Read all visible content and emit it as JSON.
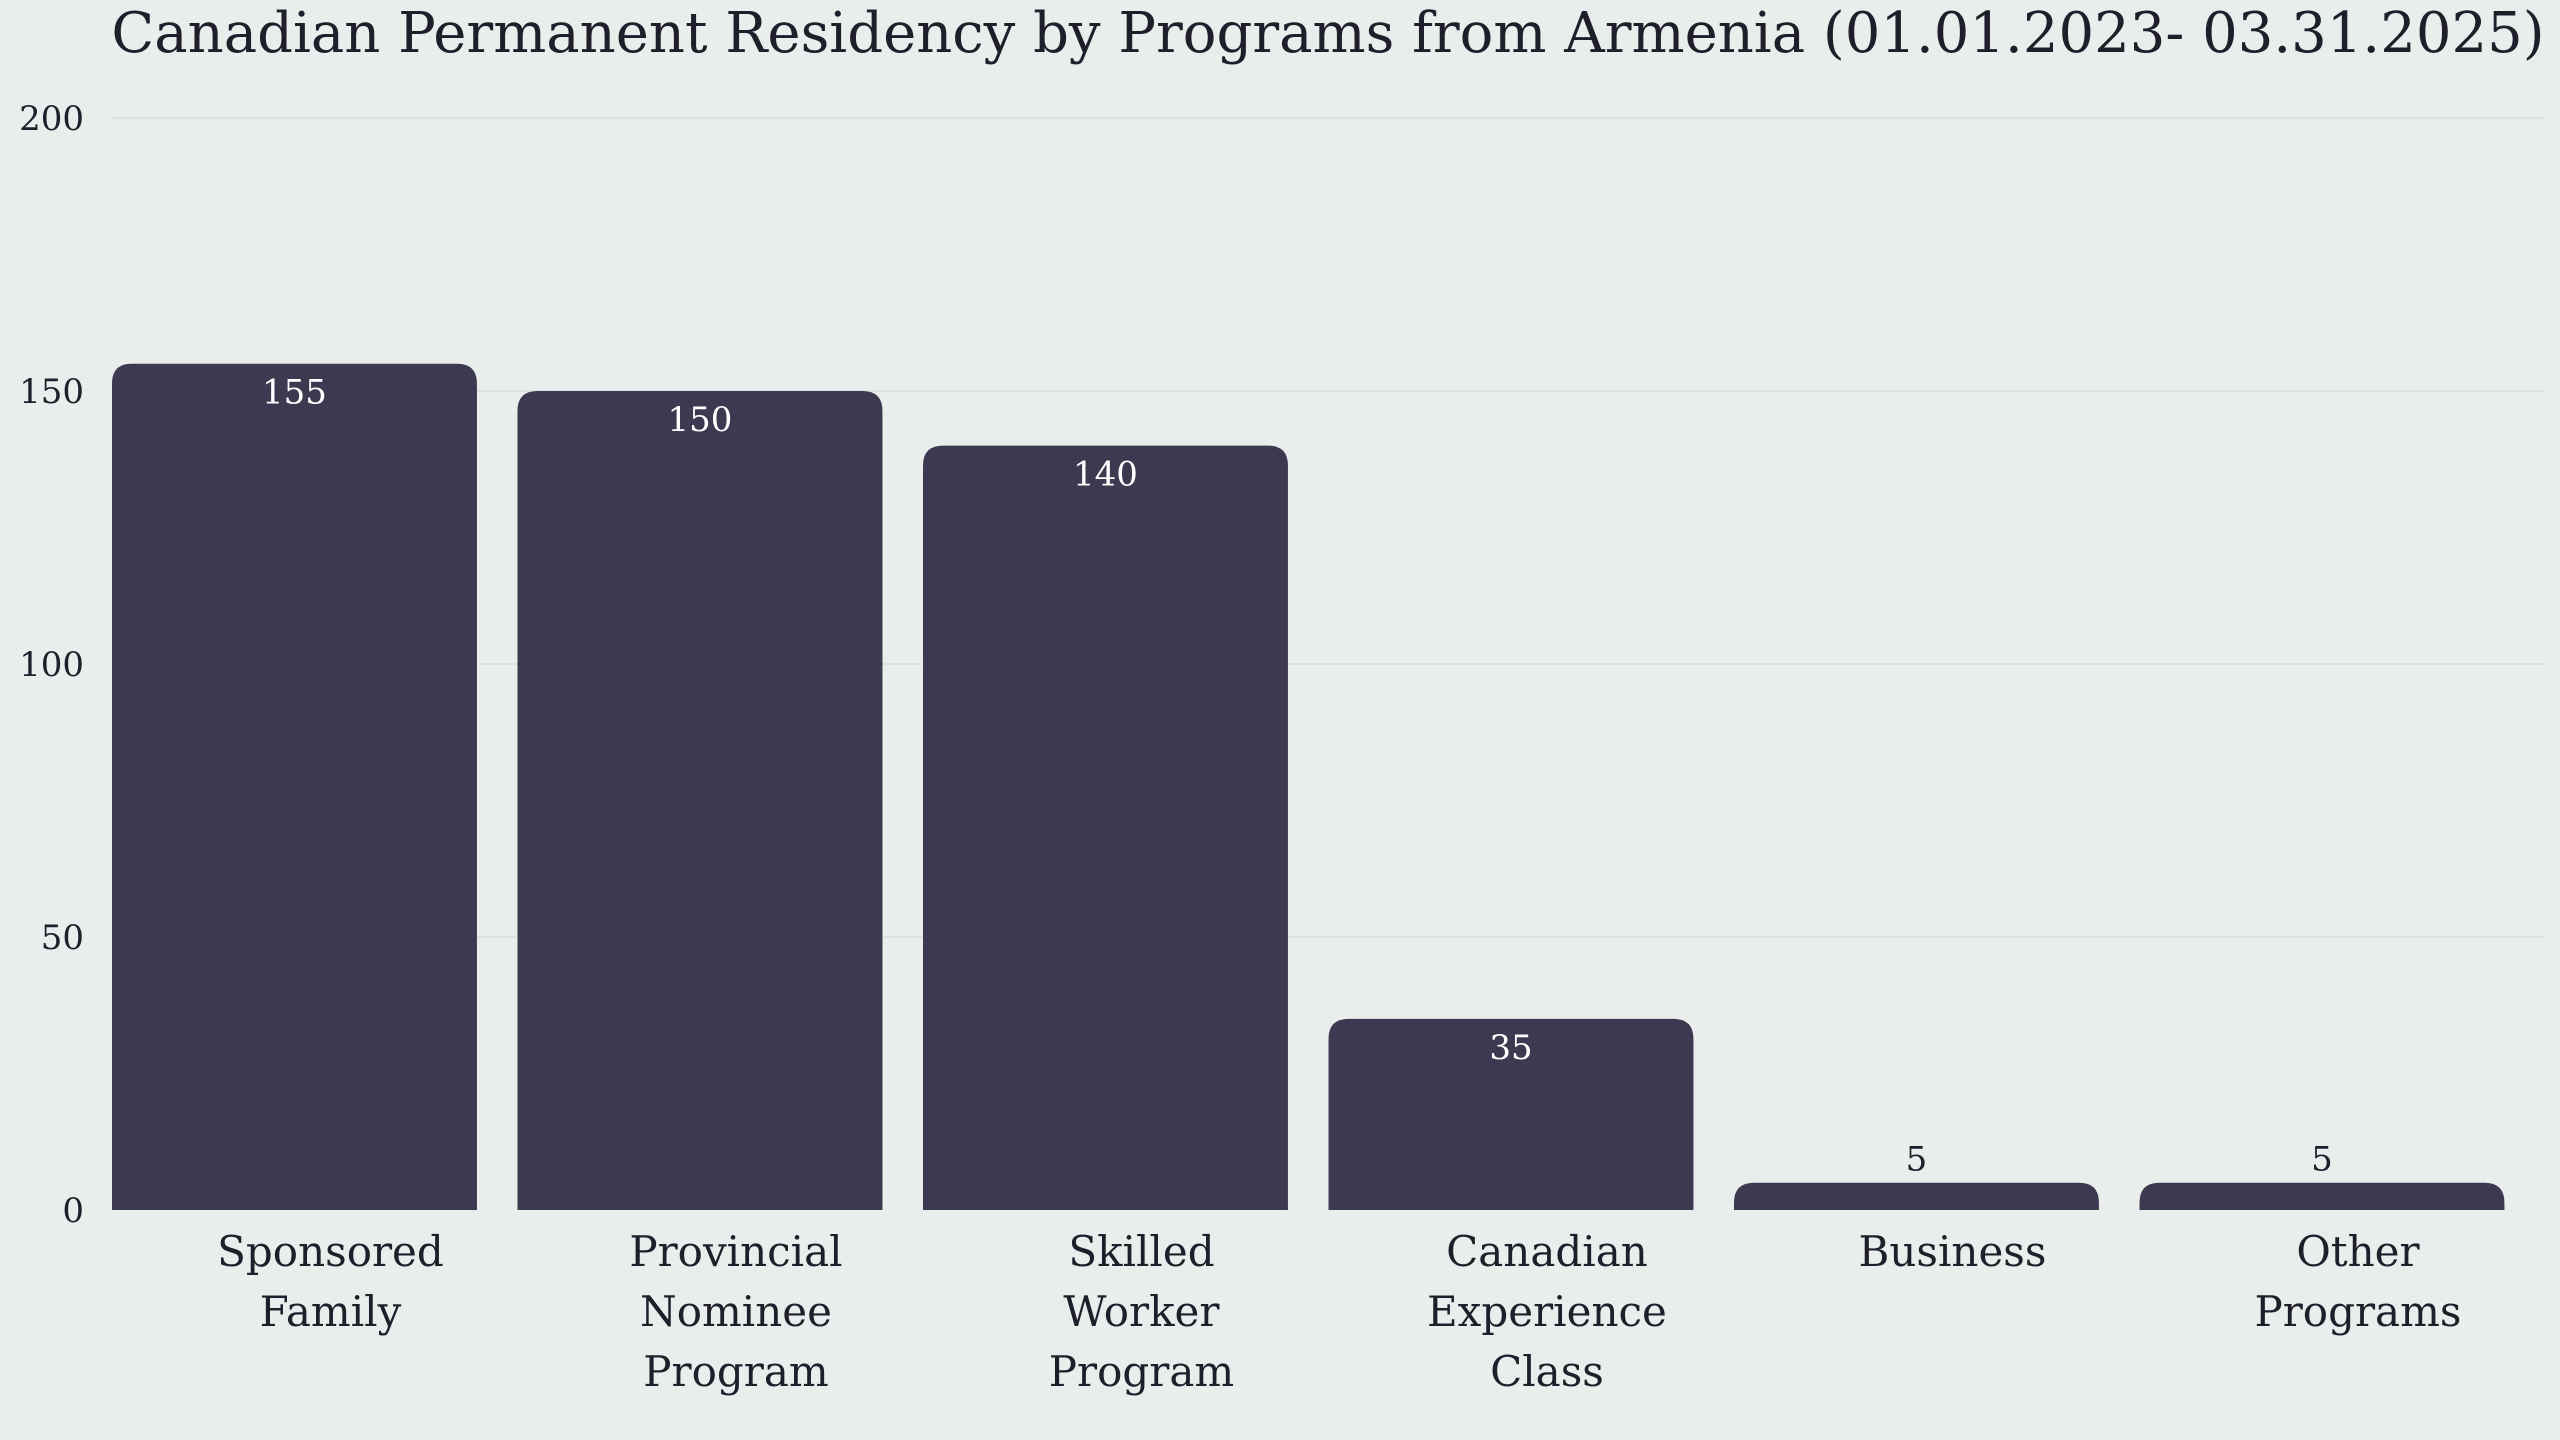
{
  "chart_data": {
    "type": "bar",
    "title": "Canadian Permanent Residency by Programs from Armenia (01.01.2023- 03.31.2025)",
    "categories": [
      "Sponsored Family",
      "Provincial Nominee Program",
      "Skilled Worker Program",
      "Canadian Experience Class",
      "Business",
      "Other Programs"
    ],
    "category_label_lines": [
      [
        "Sponsored",
        "Family"
      ],
      [
        "Provincial",
        "Nominee",
        "Program"
      ],
      [
        "Skilled",
        "Worker",
        "Program"
      ],
      [
        "Canadian",
        "Experience",
        "Class"
      ],
      [
        "Business"
      ],
      [
        "Other",
        "Programs"
      ]
    ],
    "values": [
      155,
      150,
      140,
      35,
      5,
      5
    ],
    "ylim": [
      0,
      200
    ],
    "yticks": [
      0,
      50,
      100,
      150,
      200
    ],
    "xlabel": "",
    "ylabel": "",
    "grid": true,
    "legend": "none",
    "colors": {
      "bar": "#3d3950",
      "background": "#e9edeb",
      "grid": "#dde2e0",
      "label_inside": "#ffffff",
      "label_outside": "#1f1f2b"
    }
  }
}
